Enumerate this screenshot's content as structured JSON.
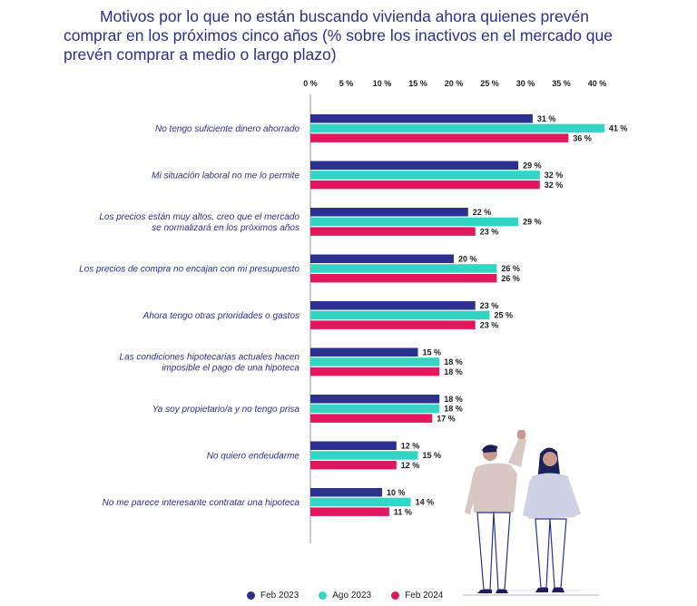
{
  "title": "Motivos por lo que no están buscando vivienda ahora quienes prevén comprar en los próximos cinco años (% sobre los inactivos en el mercado que prevén comprar a medio o largo plazo)",
  "chart_data": {
    "type": "bar",
    "orientation": "horizontal",
    "title": "Motivos por lo que no están buscando vivienda ahora quienes prevén comprar en los próximos cinco años (% sobre los inactivos en el mercado que prevén comprar a medio o largo plazo)",
    "xlim": [
      0,
      40
    ],
    "ticks": [
      "0 %",
      "5 %",
      "10 %",
      "15 %",
      "20 %",
      "25 %",
      "30 %",
      "35 %",
      "40 %"
    ],
    "tick_values": [
      0,
      5,
      10,
      15,
      20,
      25,
      30,
      35,
      40
    ],
    "categories": [
      [
        "No tengo suficiente dinero ahorrado"
      ],
      [
        "Mi situación laboral no me lo permite"
      ],
      [
        "Los precios están muy altos, creo que el mercado",
        "se normalizará en los próximos años"
      ],
      [
        "Los precios de compra no encajan con mi presupuesto"
      ],
      [
        "Ahora tengo otras prioridades o gastos"
      ],
      [
        "Las condiciones hipotecarias actuales hacen",
        "imposible el pago de una hipoteca"
      ],
      [
        "Ya soy propietario/a y no tengo prisa"
      ],
      [
        "No quiero endeudarme"
      ],
      [
        "No me parece interesante contratar una hipoteca"
      ]
    ],
    "series": [
      {
        "name": "Feb 2023",
        "color": "#2b3190",
        "values": [
          31,
          29,
          22,
          20,
          23,
          15,
          18,
          12,
          10
        ]
      },
      {
        "name": "Ago 2023",
        "color": "#33d6c4",
        "values": [
          41,
          32,
          29,
          26,
          25,
          18,
          18,
          15,
          14
        ]
      },
      {
        "name": "Feb 2024",
        "color": "#e3175f",
        "values": [
          36,
          32,
          23,
          26,
          23,
          18,
          17,
          12,
          11
        ]
      }
    ],
    "value_suffix": " %",
    "legend_position": "bottom",
    "grid": false
  },
  "legend": [
    {
      "label": "Feb 2023",
      "color": "#2b3190"
    },
    {
      "label": "Ago 2023",
      "color": "#33d6c4"
    },
    {
      "label": "Feb 2024",
      "color": "#e3175f"
    }
  ]
}
